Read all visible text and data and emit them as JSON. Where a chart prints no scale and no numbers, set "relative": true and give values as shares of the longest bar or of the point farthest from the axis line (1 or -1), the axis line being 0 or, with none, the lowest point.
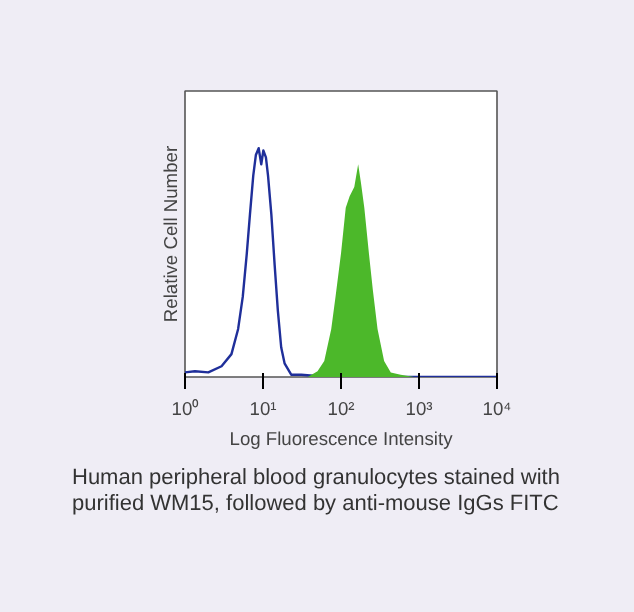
{
  "chart_data": {
    "type": "line",
    "relative": true,
    "log": "x",
    "xlabel": "Log Fluorescence Intensity",
    "ylabel": "Relative Cell Number",
    "xlim": [
      1,
      10000
    ],
    "xticks": [
      {
        "value": 1,
        "label": "10⁰"
      },
      {
        "value": 10,
        "label": "10¹"
      },
      {
        "value": 100,
        "label": "10²"
      },
      {
        "value": 1000,
        "label": "10³"
      },
      {
        "value": 10000,
        "label": "10⁴"
      }
    ],
    "grid": false,
    "series": [
      {
        "color": "#1f2f9a",
        "x": [
          1,
          1.34,
          1.99,
          2.94,
          3.94,
          4.8,
          5.5,
          6.2,
          6.8,
          7.5,
          8.1,
          8.8,
          9.5,
          10.1,
          10.9,
          11.6,
          12.8,
          14.1,
          15.5,
          17.1,
          18.9,
          23,
          31,
          68,
          10000
        ],
        "values": [
          0.02,
          0.025,
          0.02,
          0.047,
          0.1,
          0.21,
          0.35,
          0.54,
          0.71,
          0.88,
          0.97,
          1,
          0.93,
          0.99,
          0.96,
          0.88,
          0.71,
          0.49,
          0.29,
          0.13,
          0.06,
          0.01,
          0.01,
          0,
          0
        ]
      },
      {
        "type": "area",
        "color": "#4cb82a",
        "x": [
          8.6,
          37.5,
          50,
          61,
          75,
          85,
          100,
          115,
          129,
          148,
          166,
          180,
          199,
          228,
          256,
          294,
          357,
          435,
          583,
          863
        ],
        "values": [
          0,
          0,
          0.025,
          0.07,
          0.21,
          0.35,
          0.54,
          0.74,
          0.79,
          0.83,
          0.93,
          0.85,
          0.74,
          0.54,
          0.38,
          0.21,
          0.07,
          0.02,
          0.01,
          0
        ]
      }
    ],
    "annotations": [
      "Human peripheral blood granulocytes stained with purified WM15, followed by anti-mouse IgGs FITC"
    ]
  }
}
